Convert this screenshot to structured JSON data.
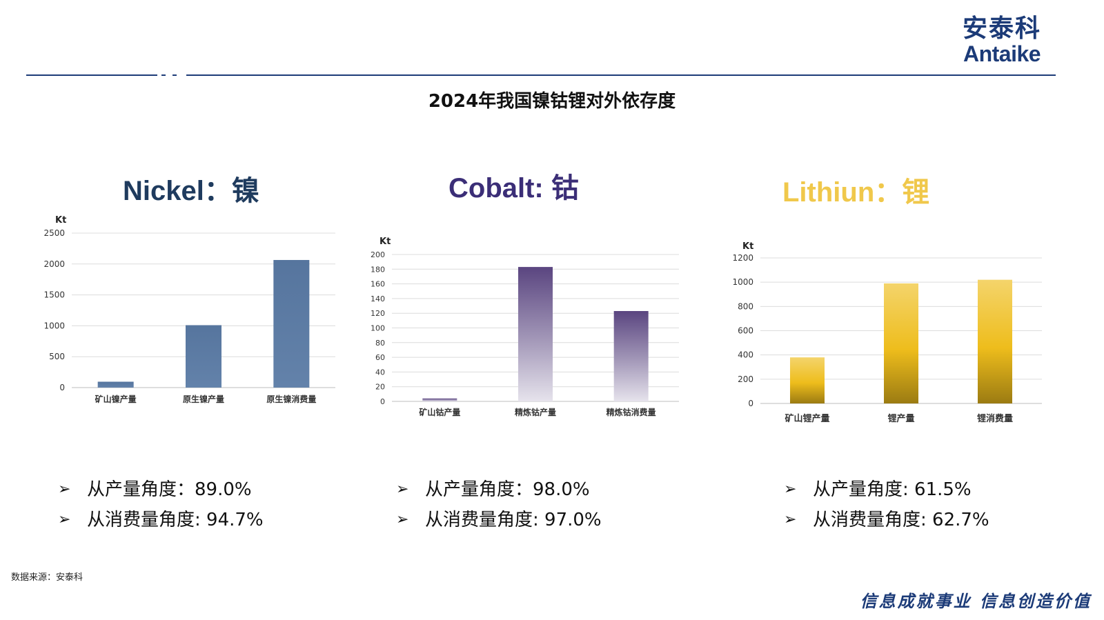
{
  "header": {
    "logo_cn": "安泰科",
    "logo_en": "Antaike",
    "brand_color": "#1c3b78"
  },
  "page_title": "2024年我国镍钴锂对外依存度",
  "panels": [
    {
      "title": "Nickel：镍",
      "color": "#1f3b5e"
    },
    {
      "title": "Cobalt: 钴",
      "color": "#3b2e77"
    },
    {
      "title": "Lithiun：锂",
      "color": "#f0c84b"
    }
  ],
  "chart_data": [
    {
      "type": "bar",
      "unit": "Kt",
      "categories": [
        "矿山镍产量",
        "原生镍产量",
        "原生镍消费量"
      ],
      "values": [
        95,
        1010,
        2065
      ],
      "ylim": [
        0,
        2500
      ],
      "yticks": [
        0,
        500,
        1000,
        1500,
        2000,
        2500
      ],
      "grid": true,
      "bar_color": "#5b7ba6"
    },
    {
      "type": "bar",
      "unit": "Kt",
      "categories": [
        "矿山钴产量",
        "精炼钴产量",
        "精炼钴消费量"
      ],
      "values": [
        4,
        183,
        123
      ],
      "ylim": [
        0,
        200
      ],
      "yticks": [
        0,
        20,
        40,
        60,
        80,
        100,
        120,
        140,
        160,
        180,
        200
      ],
      "grid": true,
      "bar_color": "#5a4580"
    },
    {
      "type": "bar",
      "unit": "Kt",
      "categories": [
        "矿山锂产量",
        "锂产量",
        "锂消费量"
      ],
      "values": [
        380,
        990,
        1020
      ],
      "ylim": [
        0,
        1200
      ],
      "yticks": [
        0,
        200,
        400,
        600,
        800,
        1000,
        1200
      ],
      "grid": true,
      "bar_color": "#eebd1c"
    }
  ],
  "bullets": [
    [
      "从产量角度：89.0%",
      "从消费量角度: 94.7%"
    ],
    [
      "从产量角度：98.0%",
      "从消费量角度: 97.0%"
    ],
    [
      "从产量角度: 61.5%",
      "从消费量角度: 62.7%"
    ]
  ],
  "bullet_marker": "➢",
  "footer": {
    "source": "数据来源：安泰科",
    "slogan": "信息成就事业 信息创造价值"
  }
}
